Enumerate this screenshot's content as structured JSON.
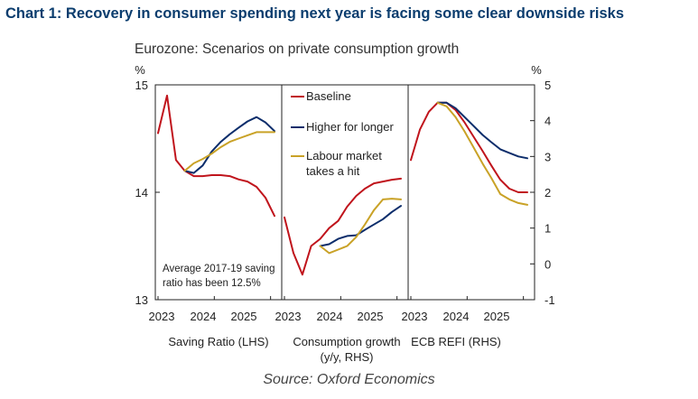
{
  "title": "Chart 1: Recovery in consumer spending next year is facing some clear downside risks",
  "subtitle": "Eurozone: Scenarios on private consumption growth",
  "source": "Source: Oxford Economics",
  "chart_data": {
    "type": "line",
    "left_axis": {
      "unit": "%",
      "ylim": [
        13,
        15
      ],
      "ticks": [
        "13",
        "14",
        "15"
      ]
    },
    "right_axis": {
      "unit": "%",
      "ylim": [
        -1,
        5
      ],
      "ticks": [
        "-1",
        "0",
        "1",
        "2",
        "3",
        "4",
        "5"
      ]
    },
    "grid": false,
    "legend_position": "top-center",
    "legend": [
      {
        "name": "Baseline",
        "color": "#c0141c"
      },
      {
        "name": "Higher for longer",
        "color": "#0c2d6b"
      },
      {
        "name": "Labour market takes a hit",
        "color": "#c9a227"
      }
    ],
    "panels": [
      {
        "label": "Saving Ratio (LHS)",
        "axis": "left",
        "xticks": [
          "2023",
          "2024",
          "2025"
        ],
        "annotation": [
          "Average 2017-19 saving",
          "ratio has been 12.5%"
        ],
        "series": [
          {
            "name": "Baseline",
            "x": [
              0,
              0.32,
              0.64,
              0.95,
              1.27,
              1.59,
              1.91,
              2.23,
              2.55,
              2.86,
              3.18,
              3.5,
              3.82,
              4.14
            ],
            "y": [
              14.55,
              14.9,
              14.3,
              14.2,
              14.15,
              14.15,
              14.16,
              14.16,
              14.15,
              14.12,
              14.1,
              14.05,
              13.95,
              13.78
            ]
          },
          {
            "name": "Higher for longer",
            "x": [
              0.95,
              1.27,
              1.59,
              1.91,
              2.23,
              2.55,
              2.86,
              3.18,
              3.5,
              3.82,
              4.14
            ],
            "y": [
              14.2,
              14.18,
              14.25,
              14.38,
              14.47,
              14.54,
              14.6,
              14.66,
              14.7,
              14.65,
              14.57
            ]
          },
          {
            "name": "Labour market takes a hit",
            "x": [
              0.95,
              1.27,
              1.59,
              1.91,
              2.23,
              2.55,
              2.86,
              3.18,
              3.5,
              3.82,
              4.14
            ],
            "y": [
              14.2,
              14.27,
              14.31,
              14.36,
              14.42,
              14.47,
              14.5,
              14.53,
              14.56,
              14.56,
              14.56
            ]
          }
        ]
      },
      {
        "label": "Consumption growth (y/y, RHS)",
        "axis": "right",
        "xticks": [
          "2023",
          "2024",
          "2025"
        ],
        "series": [
          {
            "name": "Baseline",
            "x": [
              0,
              0.32,
              0.64,
              0.95,
              1.27,
              1.59,
              1.91,
              2.23,
              2.55,
              2.86,
              3.18,
              3.5,
              3.82,
              4.14
            ],
            "y": [
              1.3,
              0.3,
              -0.3,
              0.5,
              0.7,
              1.0,
              1.2,
              1.6,
              1.9,
              2.1,
              2.25,
              2.3,
              2.35,
              2.38
            ]
          },
          {
            "name": "Higher for longer",
            "x": [
              1.27,
              1.59,
              1.91,
              2.23,
              2.55,
              2.86,
              3.18,
              3.5,
              3.82,
              4.14
            ],
            "y": [
              0.5,
              0.55,
              0.7,
              0.78,
              0.8,
              0.95,
              1.1,
              1.25,
              1.45,
              1.62
            ]
          },
          {
            "name": "Labour market takes a hit",
            "x": [
              1.27,
              1.59,
              1.91,
              2.23,
              2.55,
              2.86,
              3.18,
              3.5,
              3.82,
              4.14
            ],
            "y": [
              0.5,
              0.3,
              0.4,
              0.5,
              0.75,
              1.1,
              1.5,
              1.8,
              1.82,
              1.8
            ]
          }
        ]
      },
      {
        "label": "ECB REFI (RHS)",
        "axis": "right",
        "xticks": [
          "2023",
          "2024",
          "2025"
        ],
        "series": [
          {
            "name": "Baseline",
            "x": [
              0,
              0.32,
              0.64,
              0.95,
              1.27,
              1.59,
              1.91,
              2.23,
              2.55,
              2.86,
              3.18,
              3.5,
              3.82,
              4.14
            ],
            "y": [
              2.9,
              3.75,
              4.25,
              4.5,
              4.5,
              4.3,
              3.95,
              3.55,
              3.15,
              2.75,
              2.35,
              2.1,
              2.0,
              2.0
            ]
          },
          {
            "name": "Higher for longer",
            "x": [
              0.95,
              1.27,
              1.59,
              1.91,
              2.23,
              2.55,
              2.86,
              3.18,
              3.5,
              3.82,
              4.14
            ],
            "y": [
              4.5,
              4.5,
              4.35,
              4.1,
              3.85,
              3.6,
              3.4,
              3.2,
              3.1,
              3.0,
              2.95
            ]
          },
          {
            "name": "Labour market takes a hit",
            "x": [
              0.95,
              1.27,
              1.59,
              1.91,
              2.23,
              2.55,
              2.86,
              3.18,
              3.5,
              3.82,
              4.14
            ],
            "y": [
              4.5,
              4.4,
              4.1,
              3.7,
              3.25,
              2.8,
              2.4,
              1.95,
              1.8,
              1.7,
              1.65
            ]
          }
        ]
      }
    ]
  }
}
